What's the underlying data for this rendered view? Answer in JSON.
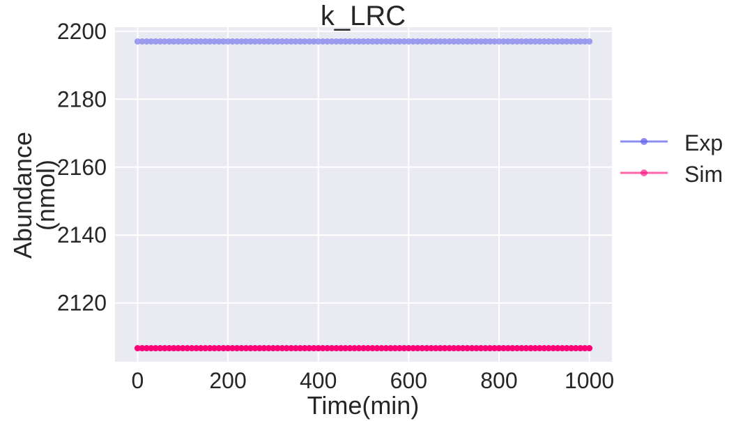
{
  "chart_data": {
    "type": "line",
    "title": "k_LRC",
    "xlabel": "Time(min)",
    "ylabel_lines": [
      "Abundance",
      "(nmol)"
    ],
    "xlim": [
      -50,
      1050
    ],
    "ylim": [
      2102.7,
      2201.2
    ],
    "xticks": [
      0,
      200,
      400,
      600,
      800,
      1000
    ],
    "xtick_labels": [
      "0",
      "200",
      "400",
      "600",
      "800",
      "1000"
    ],
    "yticks": [
      2120,
      2140,
      2160,
      2180,
      2200
    ],
    "ytick_labels": [
      "2120",
      "2140",
      "2160",
      "2180",
      "2200"
    ],
    "grid": true,
    "legend_position": "right, outside plot",
    "x": {
      "start": 0,
      "end": 1000,
      "step": 10
    },
    "series": [
      {
        "name": "Exp",
        "color": "#6666ee",
        "constant_value": 2197.0,
        "marker": "circle",
        "style": "line-with-markers",
        "opacity": 0.6
      },
      {
        "name": "Sim",
        "color": "#ff0077",
        "constant_value": 2106.7,
        "marker": "circle",
        "style": "line-with-markers",
        "opacity": 1.0
      }
    ],
    "legend": [
      {
        "label": "Exp",
        "color": "#6666ee"
      },
      {
        "label": "Sim",
        "color": "#ff0077"
      }
    ],
    "background_color": "#eaeaf2",
    "grid_color": "#ffffff"
  }
}
